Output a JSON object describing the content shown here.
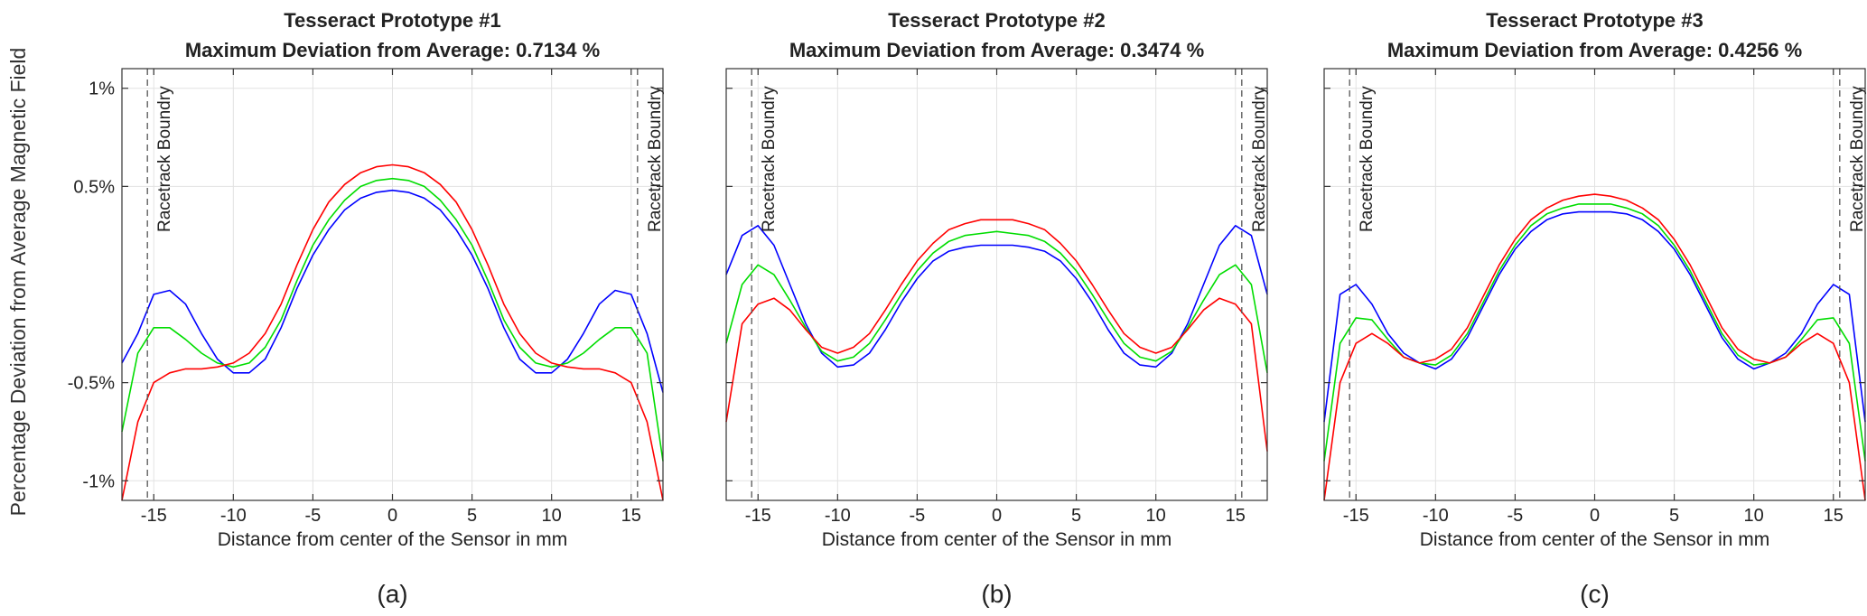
{
  "figure": {
    "ylabel": "Percentage Deviation from Average Magnetic Field"
  },
  "chart_data": [
    {
      "type": "line",
      "title": "Tesseract Prototype #1",
      "subtitle": "Maximum Deviation from Average: 0.7134 %",
      "caption": "(a)",
      "xlabel": "Distance from center of the Sensor in mm",
      "ylabel": "Percentage Deviation from Average Magnetic Field",
      "xlim": [
        -17,
        17
      ],
      "ylim": [
        -1.1,
        1.1
      ],
      "xticks": [
        -15,
        -10,
        -5,
        0,
        5,
        10,
        15
      ],
      "xtick_labels": [
        "-15",
        "-10",
        "-5",
        "0",
        "5",
        "10",
        "15"
      ],
      "yticks": [
        -1,
        -0.5,
        0.5,
        1
      ],
      "ytick_labels": [
        "-1%",
        "-0.5%",
        "0.5%",
        "1%"
      ],
      "grid": true,
      "boundaries": [
        {
          "x": -15.4,
          "label": "Racetrack Boundry"
        },
        {
          "x": 15.4,
          "label": "Racetrack Boundry"
        }
      ],
      "x": [
        -17,
        -16,
        -15,
        -14,
        -13,
        -12,
        -11,
        -10,
        -9,
        -8,
        -7,
        -6,
        -5,
        -4,
        -3,
        -2,
        -1,
        0,
        1,
        2,
        3,
        4,
        5,
        6,
        7,
        8,
        9,
        10,
        11,
        12,
        13,
        14,
        15,
        16,
        17
      ],
      "series": [
        {
          "name": "blue",
          "color": "#0000ff",
          "values": [
            -0.4,
            -0.25,
            -0.05,
            -0.03,
            -0.1,
            -0.25,
            -0.38,
            -0.45,
            -0.45,
            -0.38,
            -0.22,
            -0.02,
            0.15,
            0.28,
            0.38,
            0.44,
            0.47,
            0.48,
            0.47,
            0.44,
            0.38,
            0.28,
            0.15,
            -0.02,
            -0.22,
            -0.38,
            -0.45,
            -0.45,
            -0.38,
            -0.25,
            -0.1,
            -0.03,
            -0.05,
            -0.25,
            -0.55
          ]
        },
        {
          "name": "green",
          "color": "#00dd00",
          "values": [
            -0.75,
            -0.35,
            -0.22,
            -0.22,
            -0.28,
            -0.35,
            -0.4,
            -0.42,
            -0.4,
            -0.32,
            -0.18,
            0.02,
            0.2,
            0.33,
            0.43,
            0.5,
            0.53,
            0.54,
            0.53,
            0.5,
            0.43,
            0.33,
            0.2,
            0.02,
            -0.18,
            -0.32,
            -0.4,
            -0.42,
            -0.4,
            -0.35,
            -0.28,
            -0.22,
            -0.22,
            -0.35,
            -0.9
          ]
        },
        {
          "name": "red",
          "color": "#ff0000",
          "values": [
            -1.1,
            -0.7,
            -0.5,
            -0.45,
            -0.43,
            -0.43,
            -0.42,
            -0.4,
            -0.35,
            -0.25,
            -0.1,
            0.1,
            0.28,
            0.42,
            0.51,
            0.57,
            0.6,
            0.61,
            0.6,
            0.57,
            0.51,
            0.42,
            0.28,
            0.1,
            -0.1,
            -0.25,
            -0.35,
            -0.4,
            -0.42,
            -0.43,
            -0.43,
            -0.45,
            -0.5,
            -0.7,
            -1.1
          ]
        }
      ]
    },
    {
      "type": "line",
      "title": "Tesseract Prototype #2",
      "subtitle": "Maximum Deviation from Average: 0.3474 %",
      "caption": "(b)",
      "xlabel": "Distance from center of the Sensor in mm",
      "ylabel": "Percentage Deviation from Average Magnetic Field",
      "xlim": [
        -17,
        17
      ],
      "ylim": [
        -1.1,
        1.1
      ],
      "xticks": [
        -15,
        -10,
        -5,
        0,
        5,
        10,
        15
      ],
      "xtick_labels": [
        "-15",
        "-10",
        "-5",
        "0",
        "5",
        "10",
        "15"
      ],
      "yticks": [
        -1,
        -0.5,
        0.5,
        1
      ],
      "ytick_labels": [
        "",
        "",
        "",
        ""
      ],
      "grid": true,
      "boundaries": [
        {
          "x": -15.4,
          "label": "Racetrack Boundry"
        },
        {
          "x": 15.4,
          "label": "Racetrack Boundry"
        }
      ],
      "x": [
        -17,
        -16,
        -15,
        -14,
        -13,
        -12,
        -11,
        -10,
        -9,
        -8,
        -7,
        -6,
        -5,
        -4,
        -3,
        -2,
        -1,
        0,
        1,
        2,
        3,
        4,
        5,
        6,
        7,
        8,
        9,
        10,
        11,
        12,
        13,
        14,
        15,
        16,
        17
      ],
      "series": [
        {
          "name": "blue",
          "color": "#0000ff",
          "values": [
            0.05,
            0.25,
            0.3,
            0.2,
            0.0,
            -0.2,
            -0.35,
            -0.42,
            -0.41,
            -0.35,
            -0.23,
            -0.09,
            0.03,
            0.12,
            0.17,
            0.19,
            0.2,
            0.2,
            0.2,
            0.19,
            0.17,
            0.12,
            0.03,
            -0.09,
            -0.23,
            -0.35,
            -0.41,
            -0.42,
            -0.35,
            -0.2,
            0.0,
            0.2,
            0.3,
            0.25,
            -0.05
          ]
        },
        {
          "name": "green",
          "color": "#00dd00",
          "values": [
            -0.3,
            0.0,
            0.1,
            0.05,
            -0.08,
            -0.22,
            -0.34,
            -0.39,
            -0.37,
            -0.3,
            -0.18,
            -0.05,
            0.07,
            0.16,
            0.22,
            0.25,
            0.26,
            0.27,
            0.26,
            0.25,
            0.22,
            0.16,
            0.07,
            -0.05,
            -0.18,
            -0.3,
            -0.37,
            -0.39,
            -0.34,
            -0.22,
            -0.08,
            0.05,
            0.1,
            0.0,
            -0.45
          ]
        },
        {
          "name": "red",
          "color": "#ff0000",
          "values": [
            -0.7,
            -0.2,
            -0.1,
            -0.07,
            -0.13,
            -0.23,
            -0.32,
            -0.35,
            -0.32,
            -0.25,
            -0.13,
            0.0,
            0.12,
            0.21,
            0.28,
            0.31,
            0.33,
            0.33,
            0.33,
            0.31,
            0.28,
            0.21,
            0.12,
            0.0,
            -0.13,
            -0.25,
            -0.32,
            -0.35,
            -0.32,
            -0.23,
            -0.13,
            -0.07,
            -0.1,
            -0.2,
            -0.85
          ]
        }
      ]
    },
    {
      "type": "line",
      "title": "Tesseract Prototype #3",
      "subtitle": "Maximum Deviation from Average: 0.4256 %",
      "caption": "(c)",
      "xlabel": "Distance from center of the Sensor in mm",
      "ylabel": "Percentage Deviation from Average Magnetic Field",
      "xlim": [
        -17,
        17
      ],
      "ylim": [
        -1.1,
        1.1
      ],
      "xticks": [
        -15,
        -10,
        -5,
        0,
        5,
        10,
        15
      ],
      "xtick_labels": [
        "-15",
        "-10",
        "-5",
        "0",
        "5",
        "10",
        "15"
      ],
      "yticks": [
        -1,
        -0.5,
        0.5,
        1
      ],
      "ytick_labels": [
        "",
        "",
        "",
        ""
      ],
      "grid": true,
      "boundaries": [
        {
          "x": -15.4,
          "label": "Racetrack Boundry"
        },
        {
          "x": 15.4,
          "label": "Racetrack Boundry"
        }
      ],
      "x": [
        -17,
        -16,
        -15,
        -14,
        -13,
        -12,
        -11,
        -10,
        -9,
        -8,
        -7,
        -6,
        -5,
        -4,
        -3,
        -2,
        -1,
        0,
        1,
        2,
        3,
        4,
        5,
        6,
        7,
        8,
        9,
        10,
        11,
        12,
        13,
        14,
        15,
        16,
        17
      ],
      "series": [
        {
          "name": "blue",
          "color": "#0000ff",
          "values": [
            -0.7,
            -0.05,
            0.0,
            -0.1,
            -0.25,
            -0.35,
            -0.4,
            -0.43,
            -0.38,
            -0.27,
            -0.11,
            0.05,
            0.18,
            0.27,
            0.33,
            0.36,
            0.37,
            0.37,
            0.37,
            0.36,
            0.33,
            0.27,
            0.18,
            0.05,
            -0.11,
            -0.27,
            -0.38,
            -0.43,
            -0.4,
            -0.35,
            -0.25,
            -0.1,
            0.0,
            -0.05,
            -0.7
          ]
        },
        {
          "name": "green",
          "color": "#00dd00",
          "values": [
            -0.9,
            -0.3,
            -0.17,
            -0.18,
            -0.28,
            -0.37,
            -0.4,
            -0.41,
            -0.36,
            -0.25,
            -0.09,
            0.07,
            0.2,
            0.3,
            0.36,
            0.39,
            0.41,
            0.41,
            0.41,
            0.39,
            0.36,
            0.3,
            0.2,
            0.07,
            -0.09,
            -0.25,
            -0.36,
            -0.41,
            -0.4,
            -0.37,
            -0.28,
            -0.18,
            -0.17,
            -0.3,
            -0.9
          ]
        },
        {
          "name": "red",
          "color": "#ff0000",
          "values": [
            -1.1,
            -0.5,
            -0.3,
            -0.25,
            -0.3,
            -0.37,
            -0.4,
            -0.38,
            -0.33,
            -0.22,
            -0.06,
            0.1,
            0.23,
            0.33,
            0.39,
            0.43,
            0.45,
            0.46,
            0.45,
            0.43,
            0.39,
            0.33,
            0.23,
            0.1,
            -0.06,
            -0.22,
            -0.33,
            -0.38,
            -0.4,
            -0.37,
            -0.3,
            -0.25,
            -0.3,
            -0.5,
            -1.1
          ]
        }
      ]
    }
  ]
}
